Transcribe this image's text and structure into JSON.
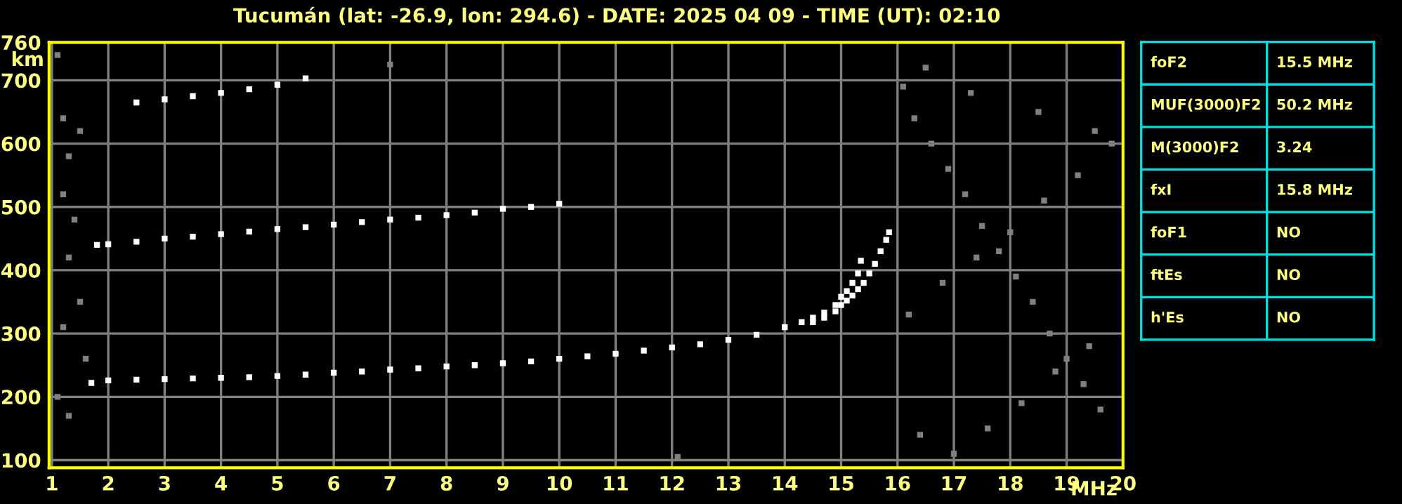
{
  "chart_data": [
    {
      "type": "scatter",
      "title": "Tucumán (lat: -26.9, lon: 294.6) - DATE: 2025 04 09 - TIME (UT): 02:10",
      "xlabel": "MHz",
      "ylabel": "km",
      "xlim": [
        0.95,
        20
      ],
      "ylim": [
        88,
        760
      ],
      "xticks": [
        1,
        2,
        3,
        4,
        5,
        6,
        7,
        8,
        9,
        10,
        11,
        12,
        13,
        14,
        15,
        16,
        17,
        18,
        19,
        20
      ],
      "yticks": [
        100,
        200,
        300,
        400,
        500,
        600,
        700,
        760
      ],
      "grid": true,
      "marker": "square",
      "series": [
        {
          "color": "#ffffff",
          "x": [
            1.7,
            2,
            2.5,
            3,
            3.5,
            4,
            4.5,
            5,
            5.5,
            6,
            6.5,
            7,
            7.5,
            8,
            8.5,
            9,
            9.5,
            10,
            10.5,
            11,
            11.5,
            12,
            12.5,
            13,
            13.5,
            14,
            14.3
          ],
          "values": [
            222,
            226,
            227,
            228,
            229,
            230,
            231,
            233,
            235,
            238,
            240,
            243,
            245,
            248,
            250,
            253,
            256,
            260,
            264,
            268,
            273,
            278,
            283,
            290,
            298,
            310,
            318
          ]
        },
        {
          "color": "#ffffff",
          "x": [
            14.5,
            14.7,
            14.9,
            15,
            15.1,
            15.2,
            15.3,
            15.35
          ],
          "values": [
            325,
            333,
            345,
            358,
            367,
            380,
            395,
            415
          ]
        },
        {
          "color": "#ffffff",
          "x": [
            14.5,
            14.7,
            14.9,
            15,
            15.1,
            15.2,
            15.3,
            15.4,
            15.5,
            15.6,
            15.7,
            15.8,
            15.85
          ],
          "values": [
            318,
            325,
            335,
            345,
            352,
            360,
            370,
            380,
            395,
            410,
            430,
            448,
            460
          ]
        },
        {
          "color": "#ffffff",
          "x": [
            1.8,
            2,
            2.5,
            3,
            3.5,
            4,
            4.5,
            5,
            5.5,
            6,
            6.5,
            7,
            7.5,
            8,
            8.5,
            9,
            9.5,
            10
          ],
          "values": [
            440,
            441,
            445,
            450,
            453,
            457,
            461,
            465,
            468,
            472,
            476,
            480,
            483,
            487,
            491,
            497,
            500,
            505
          ]
        },
        {
          "color": "#ffffff",
          "x": [
            2.5,
            3,
            3.5,
            4,
            4.5,
            5,
            5.5
          ],
          "values": [
            665,
            670,
            675,
            680,
            686,
            693,
            703
          ]
        },
        {
          "color": "#808080",
          "x": [
            1.1,
            1.2,
            1.3,
            1.5,
            1.2,
            1.4,
            1.3,
            1.5,
            1.2,
            1.6,
            1.1,
            1.3,
            16.1,
            16.3,
            16.6,
            16.9,
            17.2,
            17.5,
            17.8,
            18.1,
            18.4,
            18.7,
            19.0,
            19.3,
            19.6,
            16.4,
            17.0,
            17.6,
            18.2,
            18.8,
            19.4,
            16.2,
            16.8,
            17.4,
            18.0,
            18.6,
            19.2,
            19.8,
            16.5,
            17.3,
            18.5,
            19.5,
            12.1,
            7.0
          ],
          "values": [
            740,
            640,
            580,
            620,
            520,
            480,
            420,
            350,
            310,
            260,
            200,
            170,
            690,
            640,
            600,
            560,
            520,
            470,
            430,
            390,
            350,
            300,
            260,
            220,
            180,
            140,
            110,
            150,
            190,
            240,
            280,
            330,
            380,
            420,
            460,
            510,
            550,
            600,
            720,
            680,
            650,
            620,
            105,
            725
          ]
        }
      ]
    },
    {
      "type": "other",
      "annotations": [
        "foF2",
        "15.5 MHz",
        "MUF(3000)F2",
        "50.2 MHz",
        "M(3000)F2",
        "3.24",
        "fxI",
        "15.8 MHz",
        "foF1",
        "NO",
        "ftEs",
        "NO",
        "h'Es",
        "NO"
      ]
    }
  ]
}
